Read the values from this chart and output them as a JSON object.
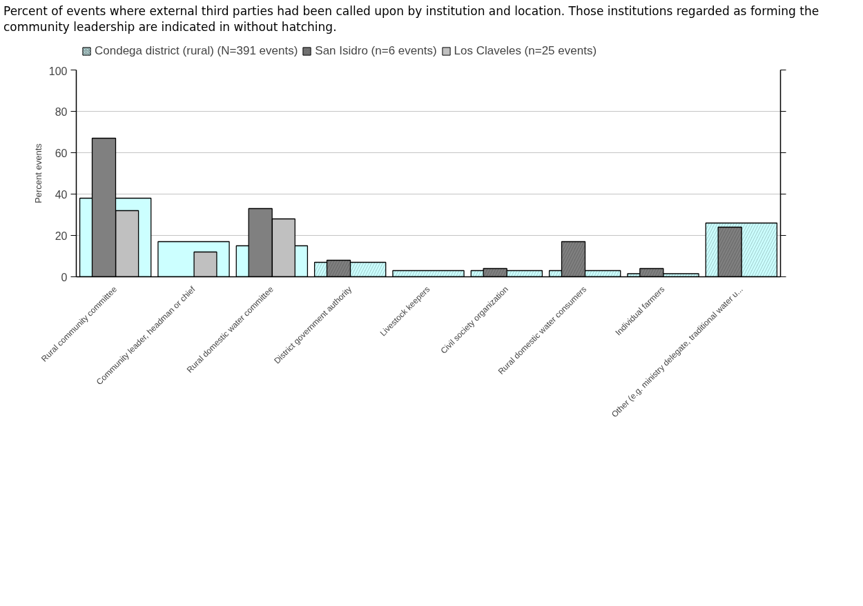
{
  "chart_data": {
    "type": "bar",
    "title": "Percent of events where external third parties had been called upon by institution and location. Those institutions regarded as forming the community leadership are indicated in without hatching.",
    "ylabel": "Percent events",
    "categories": [
      "Rural community committee",
      "Community leader, headman or chief",
      "Rural domestic water committee",
      "District government authority",
      "Livestock keepers",
      "Civil society organization",
      "Rural domestic water consumers",
      "Individual farmers",
      "Other (e.g. ministry delegate, traditional water u..."
    ],
    "series": [
      {
        "name": "Condega district (rural) (N=391 events)",
        "color": "#ccffff",
        "colors": [
          "#ccffff",
          "#ccffff",
          "#ccffff",
          "#a8d4d4",
          "#a8d4d4",
          "#a8d4d4",
          "#a8d4d4",
          "#a8d4d4",
          "#a8d4d4"
        ],
        "values": [
          38,
          17,
          15,
          7,
          3,
          3,
          3,
          1.5,
          26
        ]
      },
      {
        "name": "San Isidro (n=6 events)",
        "color": "#808080",
        "colors": [
          "#808080",
          "#808080",
          "#808080",
          "#6a6a6a",
          "#6a6a6a",
          "#6a6a6a",
          "#6a6a6a",
          "#6a6a6a",
          "#6a6a6a"
        ],
        "values": [
          67,
          null,
          33,
          8,
          null,
          4,
          17,
          4,
          24
        ]
      },
      {
        "name": "Los Claveles (n=25 events)",
        "color": "#c0c0c0",
        "values": [
          32,
          12,
          28,
          null,
          null,
          null,
          null,
          null,
          null
        ]
      }
    ],
    "ylim": [
      0,
      100
    ],
    "yticks": [
      0,
      20,
      40,
      60,
      80,
      100
    ],
    "grid": "y",
    "legend": "top"
  }
}
